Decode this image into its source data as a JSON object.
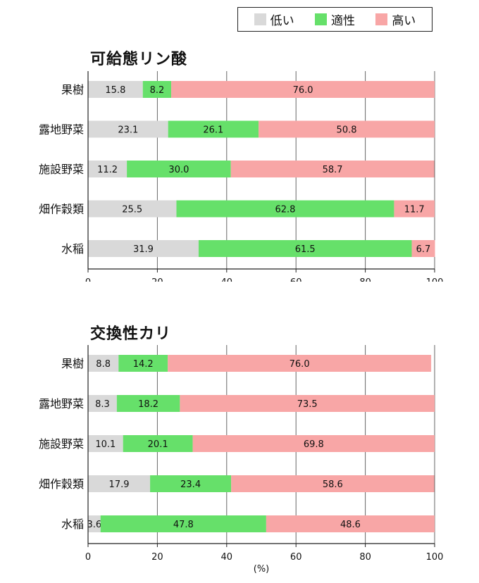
{
  "legend": [
    {
      "label": "低い",
      "color": "#d9d9d9"
    },
    {
      "label": "適性",
      "color": "#66e06a"
    },
    {
      "label": "高い",
      "color": "#f8a6a6"
    }
  ],
  "chart_data": [
    {
      "type": "bar",
      "orientation": "horizontal",
      "stacked": true,
      "title": "可給態リン酸",
      "xlabel": "(%)",
      "xlim": [
        0,
        100
      ],
      "xticks": [
        0,
        20,
        40,
        60,
        80,
        100
      ],
      "grid": "vertical",
      "categories": [
        "果樹",
        "露地野菜",
        "施設野菜",
        "畑作穀類",
        "水稲"
      ],
      "series": [
        {
          "name": "低い",
          "values": [
            15.8,
            23.1,
            11.2,
            25.5,
            31.9
          ]
        },
        {
          "name": "適性",
          "values": [
            8.2,
            26.1,
            30.0,
            62.8,
            61.5
          ]
        },
        {
          "name": "高い",
          "values": [
            76.0,
            50.8,
            58.7,
            11.7,
            6.7
          ]
        }
      ]
    },
    {
      "type": "bar",
      "orientation": "horizontal",
      "stacked": true,
      "title": "交換性カリ",
      "xlabel": "(%)",
      "xlim": [
        0,
        100
      ],
      "xticks": [
        0,
        20,
        40,
        60,
        80,
        100
      ],
      "grid": "vertical",
      "categories": [
        "果樹",
        "露地野菜",
        "施設野菜",
        "畑作穀類",
        "水稲"
      ],
      "series": [
        {
          "name": "低い",
          "values": [
            8.8,
            8.3,
            10.1,
            17.9,
            3.6
          ]
        },
        {
          "name": "適性",
          "values": [
            14.2,
            18.2,
            20.1,
            23.4,
            47.8
          ]
        },
        {
          "name": "高い",
          "values": [
            76.0,
            73.5,
            69.8,
            58.6,
            48.6
          ]
        }
      ]
    }
  ]
}
